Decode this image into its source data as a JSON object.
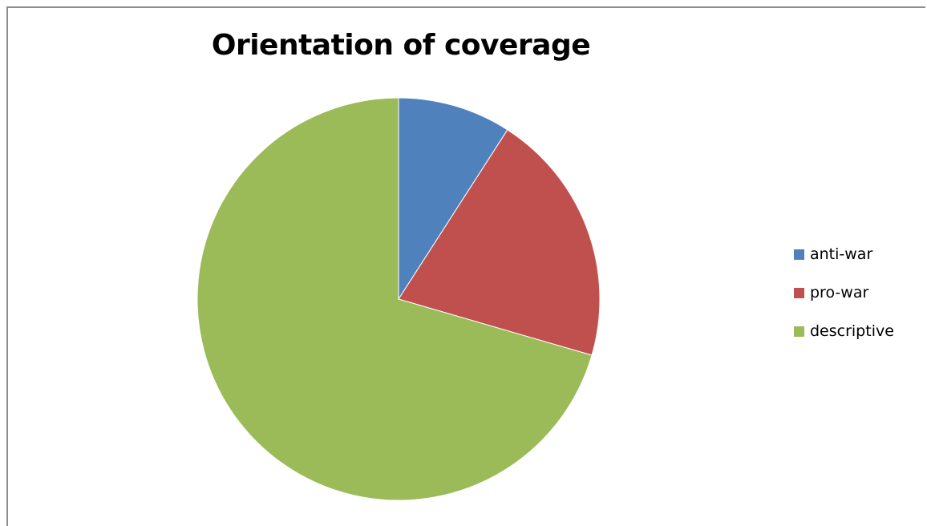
{
  "chart_data": {
    "type": "pie",
    "title": "Orientation of coverage",
    "categories": [
      "anti-war",
      "pro-war",
      "descriptive"
    ],
    "values": [
      9.1,
      20.4,
      70.5
    ],
    "colors": [
      "#4f81bd",
      "#c0504d",
      "#9bbb59"
    ],
    "start_angle": "12 o'clock",
    "direction": "clockwise",
    "legend_position": "right"
  }
}
